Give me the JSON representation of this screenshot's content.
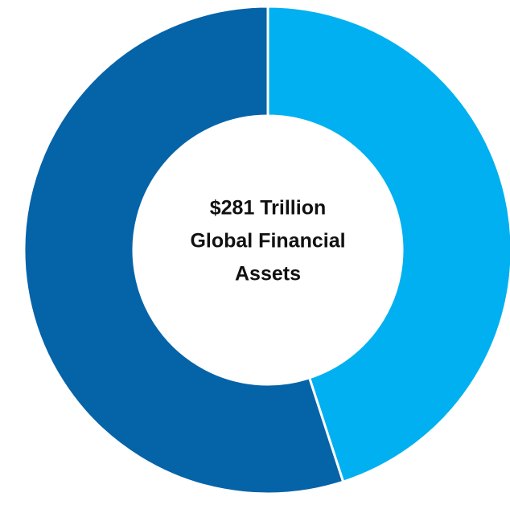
{
  "chart_data": {
    "type": "donut",
    "center_text": [
      "$281 Trillion",
      "Global Financial",
      "Assets"
    ],
    "categories": [
      null,
      null
    ],
    "values": [
      45,
      55
    ],
    "colors": [
      "#00b0f0",
      "#0563a8"
    ]
  }
}
